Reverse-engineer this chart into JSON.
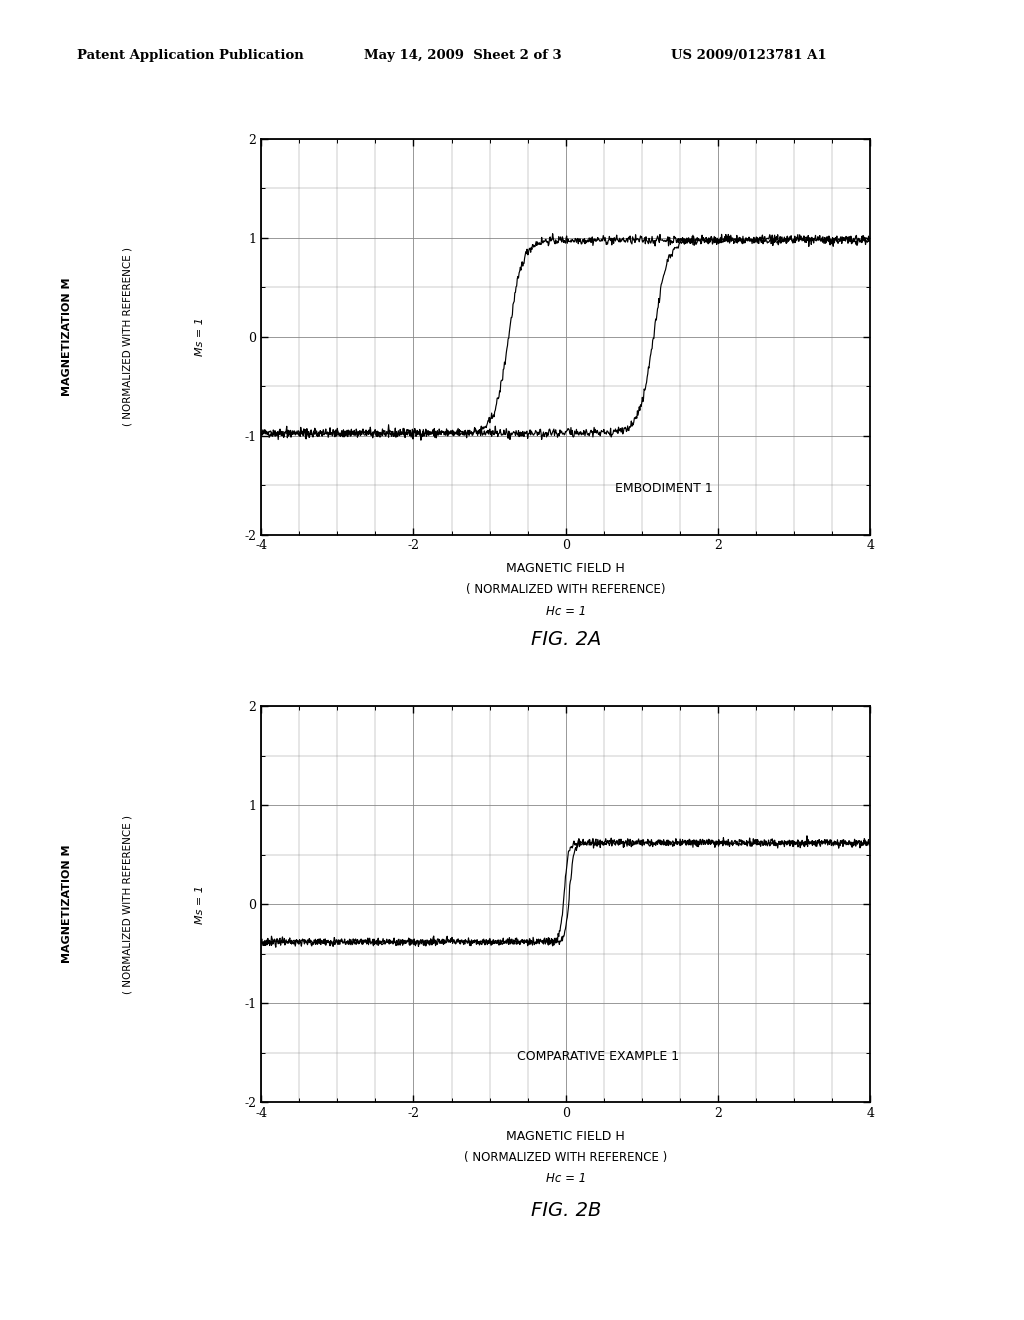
{
  "header_left": "Patent Application Publication",
  "header_mid": "May 14, 2009  Sheet 2 of 3",
  "header_right": "US 2009/0123781 A1",
  "fig2a_label": "FIG. 2A",
  "fig2b_label": "FIG. 2B",
  "xlabel": "MAGNETIC FIELD H",
  "xlabel2": "( NORMALIZED WITH REFERENCE )",
  "xlabel2b": "( NORMALIZED WITH REFERENCE)",
  "xlabel3": "Hc = 1",
  "ylabel1": "MAGNETIZATION M",
  "ylabel2": "( NORMALIZED WITH REFERENCE )",
  "ylabel3": "Ms = 1",
  "xlim": [
    -4,
    4
  ],
  "ylim": [
    -2,
    2
  ],
  "xticks": [
    -4,
    -2,
    0,
    2,
    4
  ],
  "yticks": [
    -2,
    -1,
    0,
    1,
    2
  ],
  "annotation_a": "EMBODIMENT 1",
  "annotation_b": "COMPARATIVE EXAMPLE 1",
  "bg_color": "#ffffff",
  "line_color": "#000000",
  "grid_color": "#888888"
}
